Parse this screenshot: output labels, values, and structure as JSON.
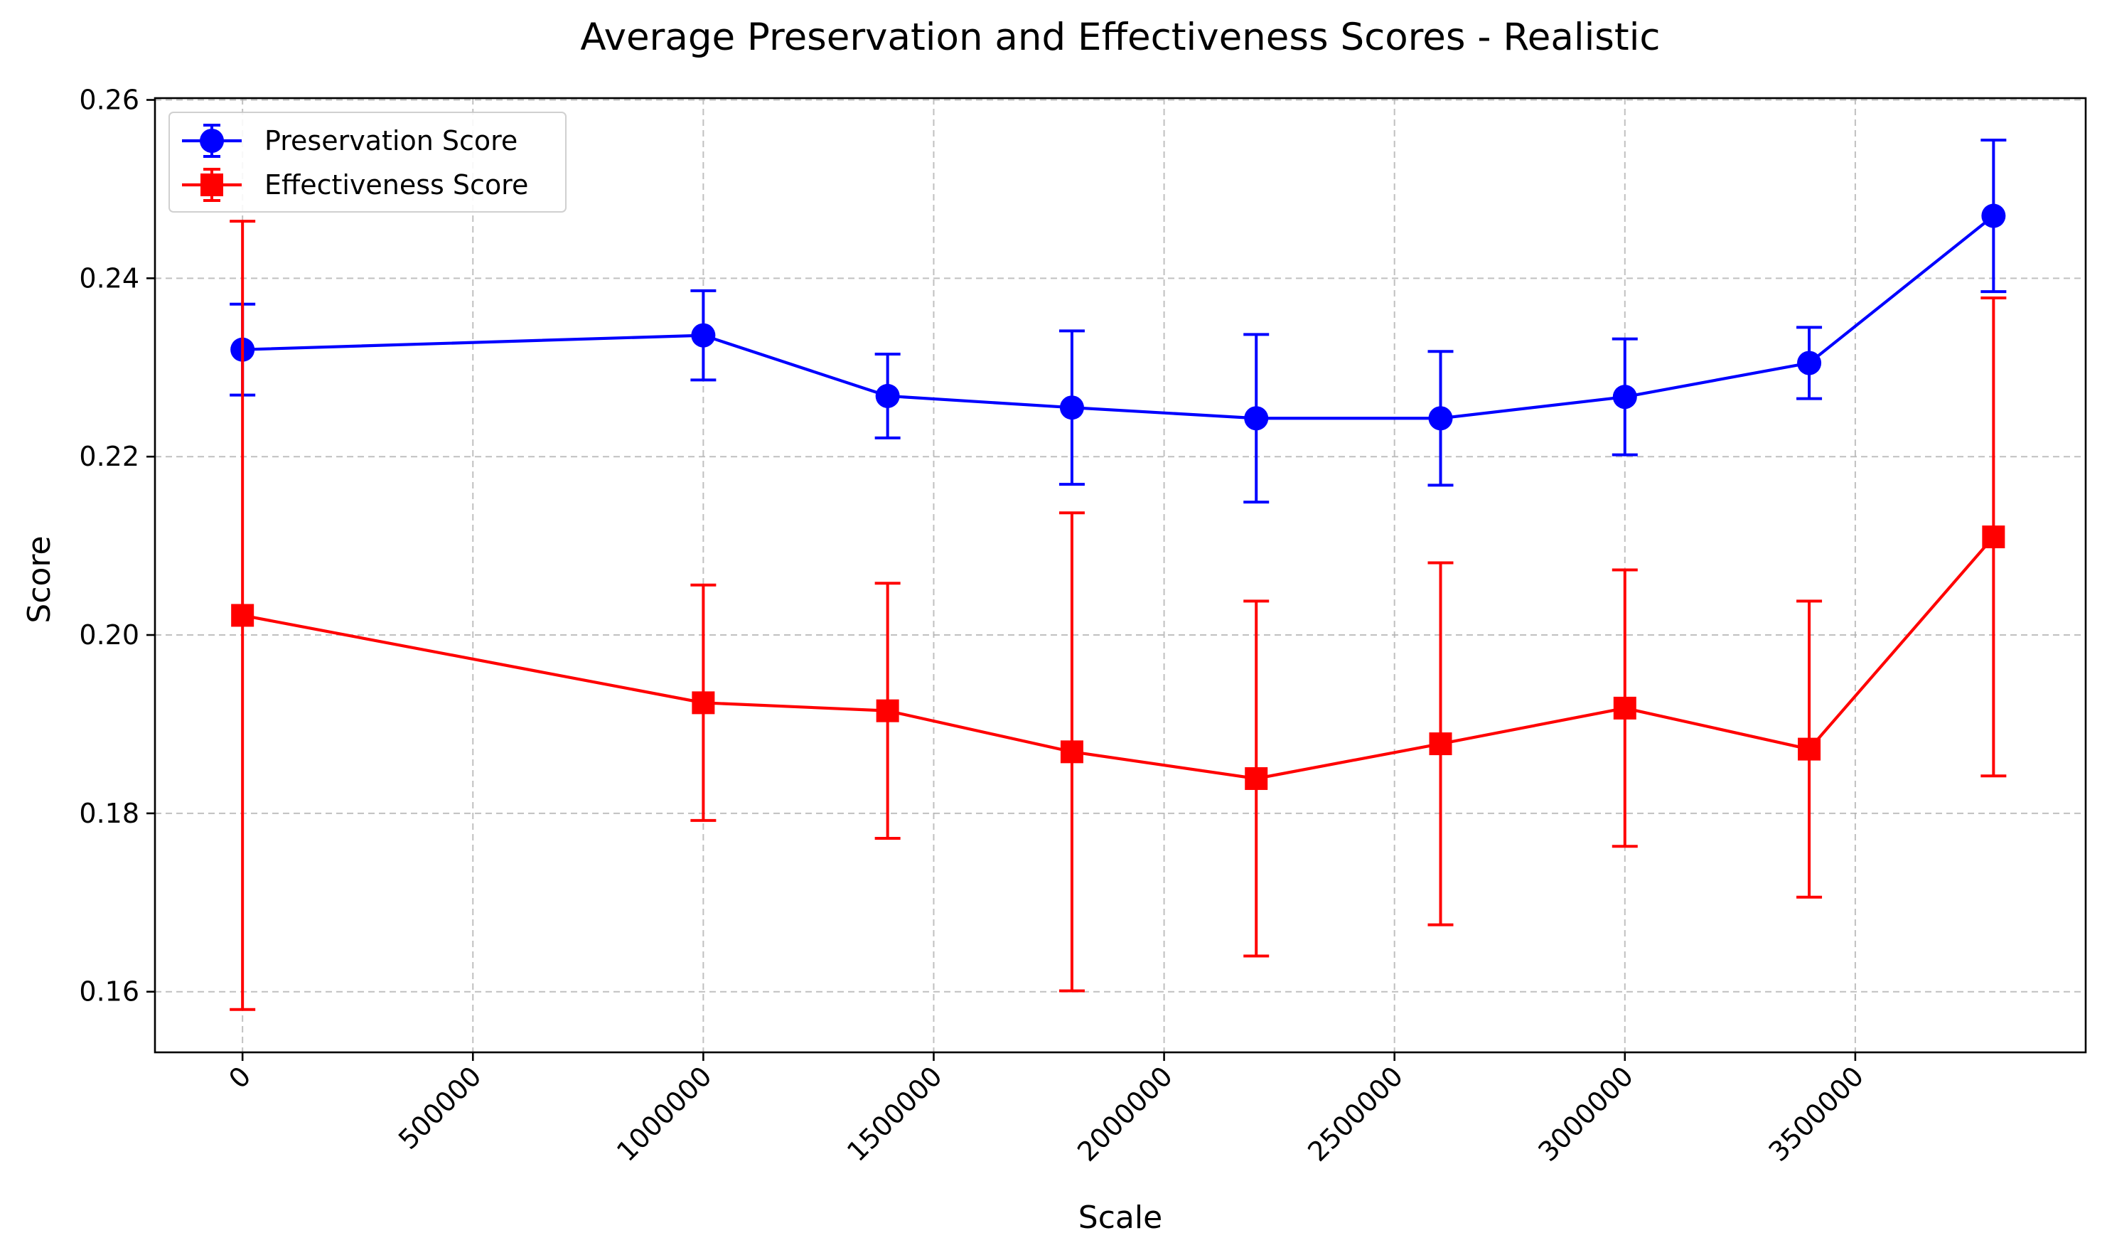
{
  "chart_data": {
    "type": "line",
    "title": "Average Preservation and Effectiveness Scores - Realistic",
    "xlabel": "Scale",
    "ylabel": "Score",
    "xlim": [
      -190000,
      4000000
    ],
    "ylim": [
      0.1532,
      0.2602
    ],
    "x_ticks": [
      0,
      500000,
      1000000,
      1500000,
      2000000,
      2500000,
      3000000,
      3500000
    ],
    "x_tick_labels": [
      "0",
      "500000",
      "1000000",
      "1500000",
      "2000000",
      "2500000",
      "3000000",
      "3500000"
    ],
    "y_ticks": [
      0.16,
      0.18,
      0.2,
      0.22,
      0.24,
      0.26
    ],
    "y_tick_labels": [
      "0.16",
      "0.18",
      "0.20",
      "0.22",
      "0.24",
      "0.26"
    ],
    "grid": true,
    "legend_position": "top-left",
    "x": [
      0,
      1000000,
      1400000,
      1800000,
      2200000,
      2600000,
      3000000,
      3400000,
      3800000
    ],
    "series": [
      {
        "name": "Preservation Score",
        "color": "#0000ff",
        "marker": "circle",
        "values": [
          0.232,
          0.2336,
          0.2268,
          0.2255,
          0.2243,
          0.2243,
          0.2267,
          0.2305,
          0.247
        ],
        "errors": [
          0.0051,
          0.005,
          0.0047,
          0.0086,
          0.0094,
          0.0075,
          0.0065,
          0.004,
          0.0085
        ]
      },
      {
        "name": "Effectiveness Score",
        "color": "#ff0000",
        "marker": "square",
        "values": [
          0.2022,
          0.1924,
          0.1915,
          0.1869,
          0.1839,
          0.1878,
          0.1918,
          0.1872,
          0.211
        ],
        "errors": [
          0.0442,
          0.0132,
          0.0143,
          0.0268,
          0.0199,
          0.0203,
          0.0155,
          0.0166,
          0.0268
        ]
      }
    ]
  }
}
